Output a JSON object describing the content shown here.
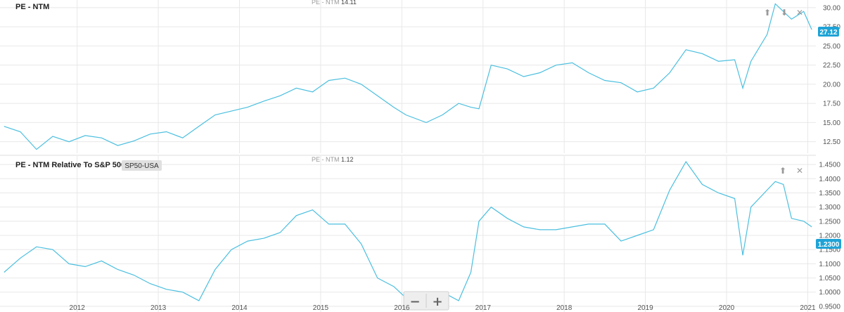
{
  "colors": {
    "line": "#4bbfdf",
    "badge": "#1fa3d6",
    "grid": "#e8e8e8",
    "tag_bg": "#e0e0e0"
  },
  "controls": {
    "up_icon": "arrow-up-icon",
    "down_icon": "arrow-down-icon",
    "close_icon": "close-icon",
    "zoom_out_label": "−",
    "zoom_in_label": "+"
  },
  "x_axis": {
    "ticks": [
      "2012",
      "2013",
      "2014",
      "2015",
      "2016",
      "2017",
      "2018",
      "2019",
      "2020",
      "2021"
    ]
  },
  "panels": [
    {
      "title": "PE - NTM",
      "hover_label": "PE - NTM",
      "hover_value": "14.11",
      "y_ticks": [
        "30.00",
        "27.50",
        "25.00",
        "22.50",
        "20.00",
        "17.50",
        "15.00",
        "12.50"
      ],
      "last_value_badge": "27.12"
    },
    {
      "title": "PE - NTM Relative To S&P 500",
      "benchmark_tag": "SP50-USA",
      "hover_label": "PE - NTM",
      "hover_value": "1.12",
      "y_ticks": [
        "1.4500",
        "1.4000",
        "1.3500",
        "1.3000",
        "1.2500",
        "1.2000",
        "1.1500",
        "1.1000",
        "1.0500",
        "1.0000",
        "0.9500"
      ],
      "last_value_badge": "1.2300"
    }
  ],
  "chart_data": [
    {
      "type": "line",
      "title": "PE - NTM",
      "ylim": [
        11.0,
        31.0
      ],
      "series": [
        {
          "name": "PE - NTM",
          "x": [
            2011.1,
            2011.3,
            2011.5,
            2011.7,
            2011.9,
            2012.1,
            2012.3,
            2012.5,
            2012.7,
            2012.9,
            2013.1,
            2013.3,
            2013.5,
            2013.7,
            2013.9,
            2014.1,
            2014.3,
            2014.5,
            2014.7,
            2014.9,
            2015.1,
            2015.3,
            2015.5,
            2015.7,
            2015.9,
            2016.05,
            2016.3,
            2016.5,
            2016.7,
            2016.85,
            2016.95,
            2017.1,
            2017.3,
            2017.5,
            2017.7,
            2017.9,
            2018.1,
            2018.3,
            2018.5,
            2018.7,
            2018.9,
            2019.1,
            2019.3,
            2019.5,
            2019.7,
            2019.9,
            2020.1,
            2020.2,
            2020.3,
            2020.5,
            2020.6,
            2020.7,
            2020.8,
            2020.95,
            2021.05
          ],
          "y": [
            14.5,
            13.8,
            11.5,
            13.2,
            12.5,
            13.3,
            13.0,
            12.0,
            12.6,
            13.5,
            13.8,
            13.0,
            14.5,
            16.0,
            16.5,
            17.0,
            17.8,
            18.5,
            19.5,
            19.0,
            20.5,
            20.8,
            20.0,
            18.5,
            17.0,
            16.0,
            15.0,
            16.0,
            17.5,
            17.0,
            16.8,
            22.5,
            22.0,
            21.0,
            21.5,
            22.5,
            22.8,
            21.5,
            20.5,
            20.2,
            19.0,
            19.5,
            21.5,
            24.5,
            24.0,
            23.0,
            23.2,
            19.5,
            23.0,
            26.5,
            30.5,
            29.5,
            28.5,
            29.5,
            27.12
          ]
        }
      ],
      "x_ticks": [
        "2012",
        "2013",
        "2014",
        "2015",
        "2016",
        "2017",
        "2018",
        "2019",
        "2020",
        "2021"
      ]
    },
    {
      "type": "line",
      "title": "PE - NTM Relative To S&P 500",
      "ylim": [
        0.93,
        1.48
      ],
      "series": [
        {
          "name": "PE - NTM Relative To S&P 500",
          "x": [
            2011.1,
            2011.3,
            2011.5,
            2011.7,
            2011.9,
            2012.1,
            2012.3,
            2012.5,
            2012.7,
            2012.9,
            2013.1,
            2013.3,
            2013.5,
            2013.7,
            2013.9,
            2014.1,
            2014.3,
            2014.5,
            2014.7,
            2014.9,
            2015.1,
            2015.3,
            2015.5,
            2015.7,
            2015.9,
            2016.05,
            2016.3,
            2016.5,
            2016.7,
            2016.85,
            2016.95,
            2017.1,
            2017.3,
            2017.5,
            2017.7,
            2017.9,
            2018.1,
            2018.3,
            2018.5,
            2018.7,
            2018.9,
            2019.1,
            2019.3,
            2019.5,
            2019.7,
            2019.9,
            2020.1,
            2020.2,
            2020.3,
            2020.5,
            2020.6,
            2020.7,
            2020.8,
            2020.95,
            2021.05
          ],
          "y": [
            1.07,
            1.12,
            1.16,
            1.15,
            1.1,
            1.09,
            1.11,
            1.08,
            1.06,
            1.03,
            1.01,
            1.0,
            0.97,
            1.08,
            1.15,
            1.18,
            1.19,
            1.21,
            1.27,
            1.29,
            1.24,
            1.24,
            1.17,
            1.05,
            1.02,
            0.98,
            1.0,
            1.0,
            0.97,
            1.07,
            1.25,
            1.3,
            1.26,
            1.23,
            1.22,
            1.22,
            1.23,
            1.24,
            1.24,
            1.18,
            1.2,
            1.22,
            1.36,
            1.46,
            1.38,
            1.35,
            1.33,
            1.13,
            1.3,
            1.36,
            1.39,
            1.38,
            1.26,
            1.25,
            1.23
          ]
        }
      ],
      "x_ticks": [
        "2012",
        "2013",
        "2014",
        "2015",
        "2016",
        "2017",
        "2018",
        "2019",
        "2020",
        "2021"
      ]
    }
  ]
}
